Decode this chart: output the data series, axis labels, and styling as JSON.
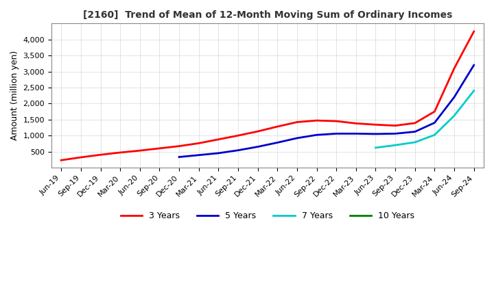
{
  "title": "[2160]  Trend of Mean of 12-Month Moving Sum of Ordinary Incomes",
  "ylabel": "Amount (million yen)",
  "background_color": "#ffffff",
  "plot_bg_color": "#ffffff",
  "grid_color": "#aaaaaa",
  "series": {
    "3 Years": {
      "color": "#ff0000",
      "points": {
        "Jun-19": 230,
        "Sep-19": 320,
        "Dec-19": 400,
        "Mar-20": 470,
        "Jun-20": 530,
        "Sep-20": 600,
        "Dec-20": 670,
        "Mar-21": 760,
        "Jun-21": 880,
        "Sep-21": 1000,
        "Dec-21": 1130,
        "Mar-22": 1280,
        "Jun-22": 1420,
        "Sep-22": 1470,
        "Dec-22": 1450,
        "Mar-23": 1380,
        "Jun-23": 1340,
        "Sep-23": 1310,
        "Dec-23": 1390,
        "Mar-24": 1750,
        "Jun-24": 3100,
        "Sep-24": 4250
      }
    },
    "5 Years": {
      "color": "#0000cc",
      "points": {
        "Dec-20": 330,
        "Mar-21": 390,
        "Jun-21": 450,
        "Sep-21": 540,
        "Dec-21": 650,
        "Mar-22": 780,
        "Jun-22": 920,
        "Sep-22": 1020,
        "Dec-22": 1060,
        "Mar-23": 1060,
        "Jun-23": 1050,
        "Sep-23": 1060,
        "Dec-23": 1120,
        "Mar-24": 1400,
        "Jun-24": 2200,
        "Sep-24": 3200
      }
    },
    "7 Years": {
      "color": "#00cccc",
      "points": {
        "Jun-23": 620,
        "Sep-23": 700,
        "Dec-23": 790,
        "Mar-24": 1020,
        "Jun-24": 1620,
        "Sep-24": 2400
      }
    },
    "10 Years": {
      "color": "#008000",
      "points": {}
    }
  },
  "xlabels": [
    "Jun-19",
    "Sep-19",
    "Dec-19",
    "Mar-20",
    "Jun-20",
    "Sep-20",
    "Dec-20",
    "Mar-21",
    "Jun-21",
    "Sep-21",
    "Dec-21",
    "Mar-22",
    "Jun-22",
    "Sep-22",
    "Dec-22",
    "Mar-23",
    "Jun-23",
    "Sep-23",
    "Dec-23",
    "Mar-24",
    "Jun-24",
    "Sep-24"
  ],
  "ylim": [
    0,
    4500
  ],
  "yticks": [
    500,
    1000,
    1500,
    2000,
    2500,
    3000,
    3500,
    4000
  ]
}
